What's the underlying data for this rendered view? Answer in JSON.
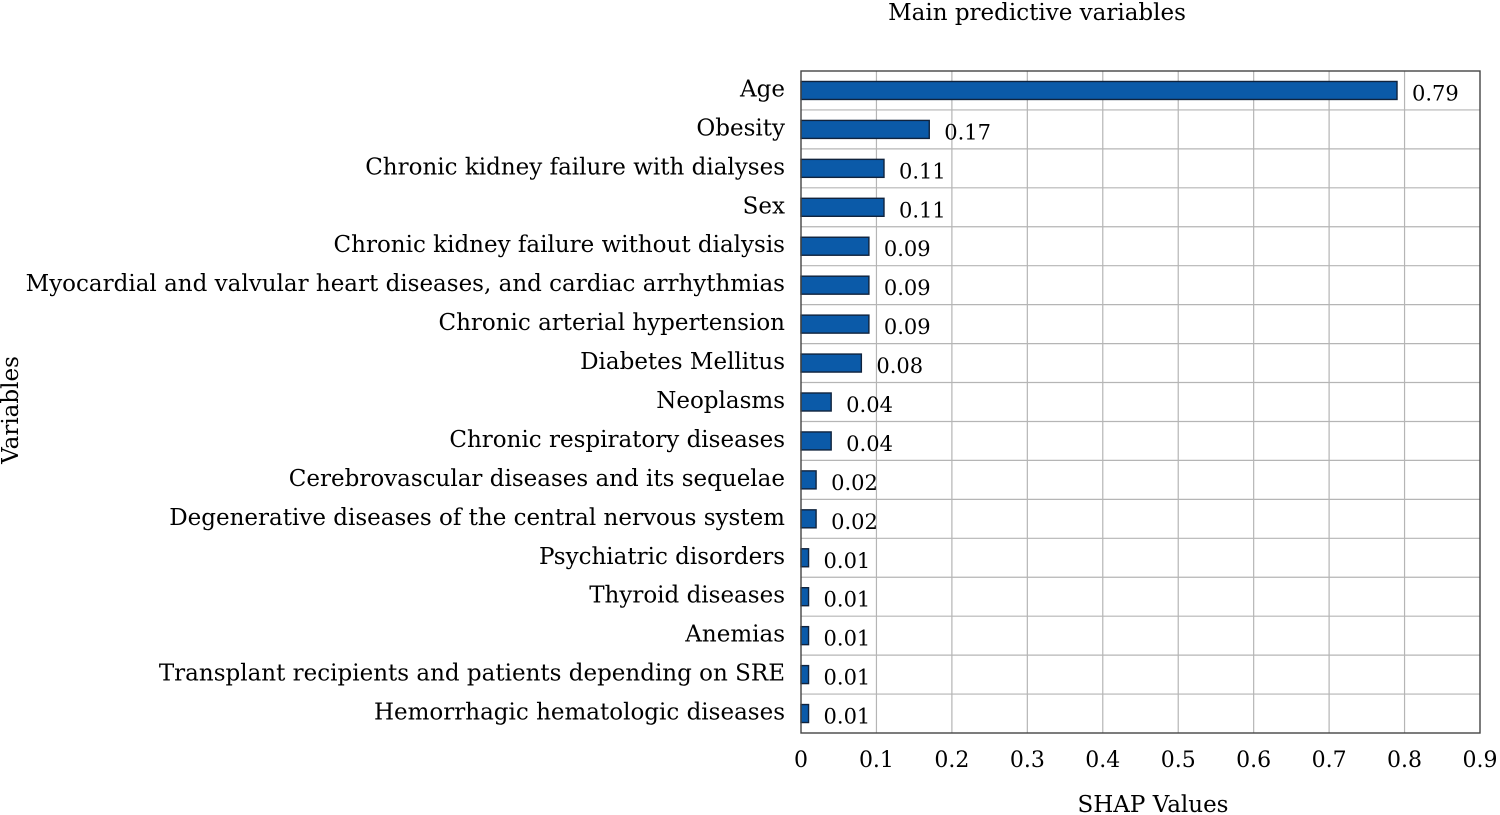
{
  "chart_data": {
    "type": "bar",
    "orientation": "horizontal",
    "title": "Main predictive variables",
    "xlabel": "SHAP Values",
    "ylabel": "Variables",
    "xlim": [
      0,
      0.9
    ],
    "xticks": [
      "0",
      "0.1",
      "0.2",
      "0.3",
      "0.4",
      "0.5",
      "0.6",
      "0.7",
      "0.8",
      "0.9"
    ],
    "grid": true,
    "bar_color": "#0b5aa8",
    "categories": [
      "Age",
      "Obesity",
      "Chronic kidney failure with dialyses",
      "Sex",
      "Chronic kidney failure without dialysis",
      "Myocardial and valvular heart diseases, and cardiac arrhythmias",
      "Chronic arterial hypertension",
      "Diabetes Mellitus",
      "Neoplasms",
      "Chronic respiratory diseases",
      "Cerebrovascular diseases and its sequelae",
      "Degenerative diseases of the central nervous system",
      "Psychiatric disorders",
      "Thyroid diseases",
      "Anemias",
      "Transplant recipients and patients depending on SRE",
      "Hemorrhagic hematologic diseases"
    ],
    "values": [
      0.79,
      0.17,
      0.11,
      0.11,
      0.09,
      0.09,
      0.09,
      0.08,
      0.04,
      0.04,
      0.02,
      0.02,
      0.01,
      0.01,
      0.01,
      0.01,
      0.01
    ],
    "value_labels": [
      "0.79",
      "0.17",
      "0.11",
      "0.11",
      "0.09",
      "0.09",
      "0.09",
      "0.08",
      "0.04",
      "0.04",
      "0.02",
      "0.02",
      "0.01",
      "0.01",
      "0.01",
      "0.01",
      "0.01"
    ]
  }
}
